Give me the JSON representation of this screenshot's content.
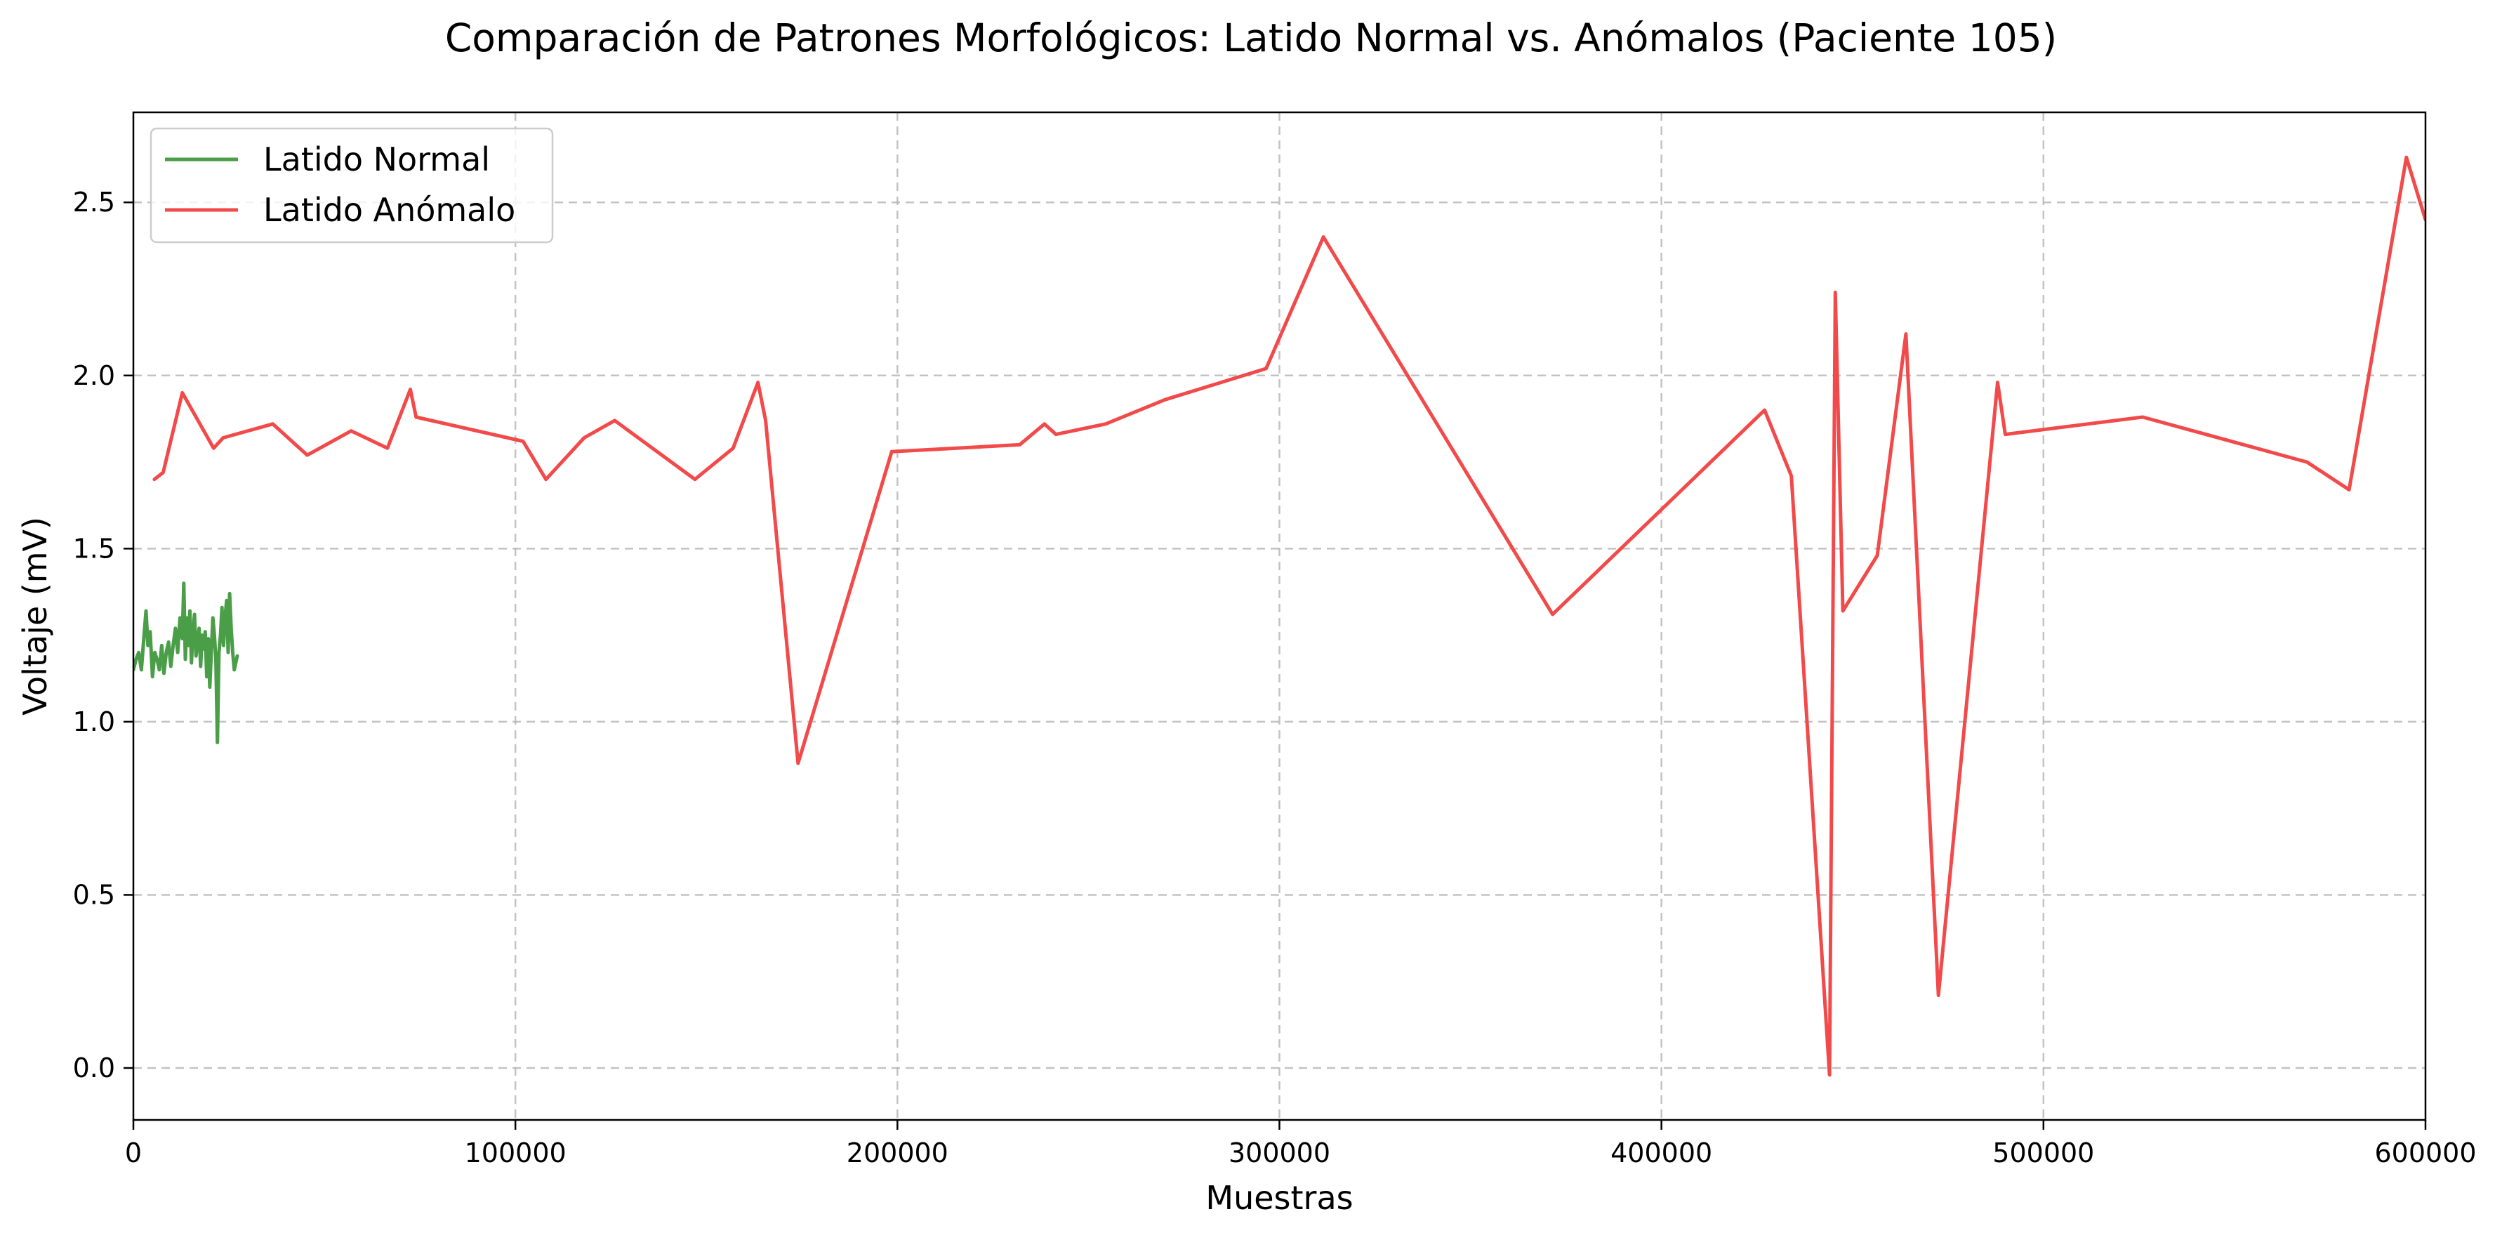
{
  "chart_data": {
    "type": "line",
    "title": "Comparación de Patrones Morfológicos: Latido Normal vs. Anómalos (Paciente 105)",
    "xlabel": "Muestras",
    "ylabel": "Voltaje (mV)",
    "xlim": [
      0,
      600000
    ],
    "ylim": [
      -0.15,
      2.76
    ],
    "x_ticks": [
      {
        "value": 0,
        "label": "0"
      },
      {
        "value": 100000,
        "label": "100000"
      },
      {
        "value": 200000,
        "label": "200000"
      },
      {
        "value": 300000,
        "label": "300000"
      },
      {
        "value": 400000,
        "label": "400000"
      },
      {
        "value": 500000,
        "label": "500000"
      },
      {
        "value": 600000,
        "label": "600000"
      }
    ],
    "y_ticks": [
      {
        "value": 0.0,
        "label": "0.0"
      },
      {
        "value": 0.5,
        "label": "0.5"
      },
      {
        "value": 1.0,
        "label": "1.0"
      },
      {
        "value": 1.5,
        "label": "1.5"
      },
      {
        "value": 2.0,
        "label": "2.0"
      },
      {
        "value": 2.5,
        "label": "2.5"
      }
    ],
    "grid": true,
    "legend_position": "top-left",
    "series": [
      {
        "name": "Latido Normal",
        "color": "#4a9e48",
        "x": [
          0,
          700,
          1400,
          2100,
          2800,
          3300,
          3800,
          4400,
          5000,
          5600,
          6200,
          6800,
          7400,
          8000,
          8600,
          9200,
          9800,
          10400,
          11000,
          11600,
          12200,
          12800,
          13200,
          13600,
          14000,
          14400,
          14800,
          15200,
          15600,
          16000,
          16400,
          16800,
          17200,
          17600,
          18000,
          18400,
          18800,
          19200,
          19600,
          20000,
          20400,
          20800,
          21200,
          21600,
          22000,
          22400,
          22800,
          23200,
          23600,
          24000,
          24400,
          24800,
          25200,
          25600,
          26000,
          26400,
          26800,
          27200
        ],
        "y": [
          1.15,
          1.18,
          1.2,
          1.15,
          1.25,
          1.32,
          1.22,
          1.26,
          1.13,
          1.2,
          1.18,
          1.15,
          1.22,
          1.14,
          1.2,
          1.23,
          1.16,
          1.22,
          1.27,
          1.2,
          1.3,
          1.24,
          1.4,
          1.18,
          1.3,
          1.22,
          1.32,
          1.17,
          1.26,
          1.31,
          1.19,
          1.23,
          1.27,
          1.16,
          1.25,
          1.21,
          1.26,
          1.13,
          1.24,
          1.1,
          1.2,
          1.3,
          1.25,
          1.18,
          0.94,
          1.2,
          1.25,
          1.33,
          1.22,
          1.3,
          1.35,
          1.2,
          1.37,
          1.27,
          1.2,
          1.15,
          1.17,
          1.19
        ]
      },
      {
        "name": "Latido Anómalo",
        "color": "#f24a4a",
        "x": [
          5500,
          7800,
          12800,
          21000,
          23500,
          36500,
          45500,
          57000,
          66500,
          72500,
          74000,
          102000,
          108000,
          118000,
          126000,
          147000,
          157000,
          163500,
          165500,
          174000,
          198500,
          232000,
          238500,
          241500,
          254500,
          270000,
          296500,
          311500,
          371500,
          427000,
          434000,
          444000,
          445500,
          447500,
          456500,
          464000,
          472500,
          488000,
          490000,
          526000,
          569000,
          580000,
          595000,
          600000
        ],
        "y": [
          1.7,
          1.72,
          1.95,
          1.79,
          1.82,
          1.86,
          1.77,
          1.84,
          1.79,
          1.96,
          1.88,
          1.81,
          1.7,
          1.82,
          1.87,
          1.7,
          1.79,
          1.98,
          1.87,
          0.88,
          1.78,
          1.8,
          1.86,
          1.83,
          1.86,
          1.93,
          2.02,
          2.4,
          1.31,
          1.9,
          1.71,
          -0.02,
          2.24,
          1.32,
          1.48,
          2.12,
          0.21,
          1.98,
          1.83,
          1.88,
          1.75,
          1.67,
          2.63,
          2.45
        ]
      }
    ]
  }
}
